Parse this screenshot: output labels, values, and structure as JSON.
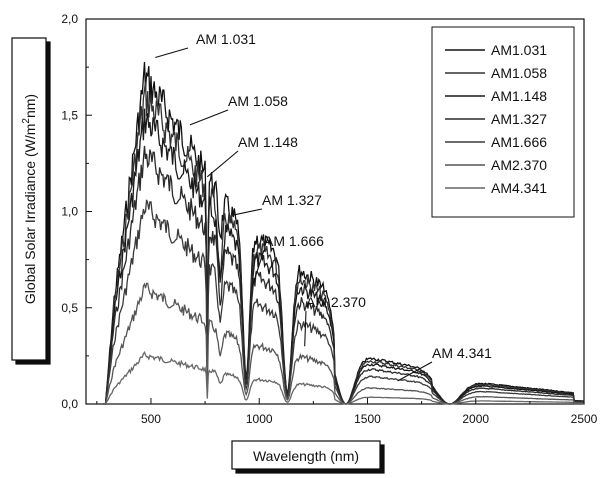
{
  "chart_data": {
    "type": "line",
    "xlabel": "Wavelength (nm)",
    "ylabel": "Global Solar Irradiance (W/m",
    "ylabel_sup": "2",
    "ylabel_end": "nm)",
    "xlim": [
      200,
      2500
    ],
    "ylim": [
      0,
      2.0
    ],
    "x_ticks": [
      500,
      1000,
      1500,
      2000,
      2500
    ],
    "y_ticks": [
      "0,0",
      "0,5",
      "1,0",
      "1,5",
      "2,0"
    ],
    "y_tick_values": [
      0,
      0.5,
      1.0,
      1.5,
      2.0
    ],
    "legend_position": "top-right",
    "grid": false,
    "series": [
      {
        "name": "AM1.031",
        "peak": 1.81,
        "color": "#111111"
      },
      {
        "name": "AM1.058",
        "peak": 1.7,
        "color": "#333333"
      },
      {
        "name": "AM1.148",
        "peak": 1.58,
        "color": "#1a1a1a"
      },
      {
        "name": "AM1.327",
        "peak": 1.38,
        "color": "#2a2a2a"
      },
      {
        "name": "AM1.666",
        "peak": 1.09,
        "color": "#3a3a3a"
      },
      {
        "name": "AM2.370",
        "peak": 0.64,
        "color": "#555555"
      },
      {
        "name": "AM4.341",
        "peak": 0.27,
        "color": "#666666"
      }
    ],
    "annotations": [
      {
        "text": "AM 1.031",
        "target_x": 520,
        "target_y": 1.8
      },
      {
        "text": "AM 1.058",
        "target_x": 680,
        "target_y": 1.45
      },
      {
        "text": "AM 1.148",
        "target_x": 760,
        "target_y": 1.18
      },
      {
        "text": "AM 1.327",
        "target_x": 875,
        "target_y": 0.98
      },
      {
        "text": "AM 1.666",
        "target_x": 965,
        "target_y": 0.6
      },
      {
        "text": "AM 2.370",
        "target_x": 1210,
        "target_y": 0.3
      },
      {
        "text": "AM 4.341",
        "target_x": 1640,
        "target_y": 0.12
      }
    ]
  }
}
